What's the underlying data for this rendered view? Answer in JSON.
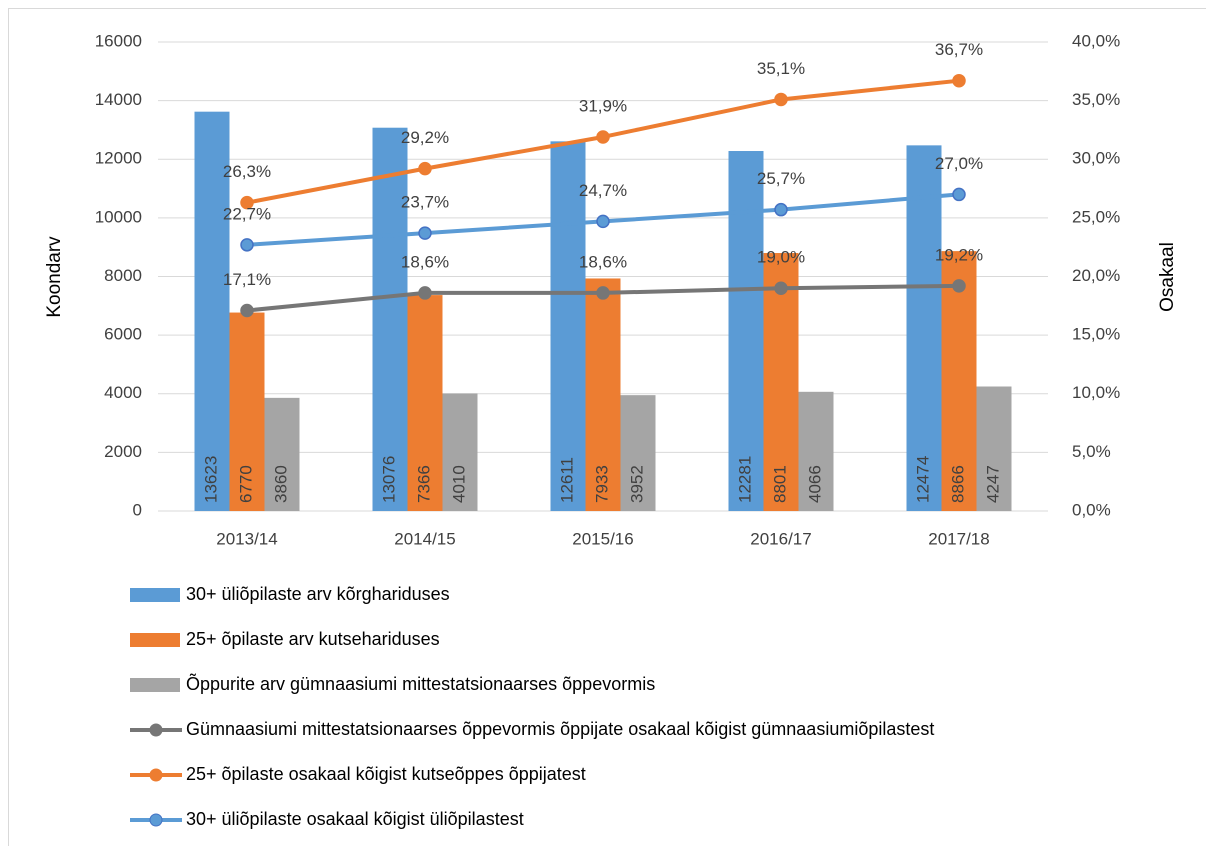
{
  "chart_data": {
    "type": "combo",
    "categories": [
      "2013/14",
      "2014/15",
      "2015/16",
      "2016/17",
      "2017/18"
    ],
    "ylabel": "Koondarv",
    "y2label": "Osakaal",
    "ylim": [
      0,
      16000
    ],
    "yticks": [
      0,
      2000,
      4000,
      6000,
      8000,
      10000,
      12000,
      14000,
      16000
    ],
    "y2lim": [
      0,
      40
    ],
    "y2ticks": [
      {
        "value": 0,
        "label": "0,0%"
      },
      {
        "value": 5,
        "label": "5,0%"
      },
      {
        "value": 10,
        "label": "10,0%"
      },
      {
        "value": 15,
        "label": "15,0%"
      },
      {
        "value": 20,
        "label": "20,0%"
      },
      {
        "value": 25,
        "label": "25,0%"
      },
      {
        "value": 30,
        "label": "30,0%"
      },
      {
        "value": 35,
        "label": "35,0%"
      },
      {
        "value": 40,
        "label": "40,0%"
      }
    ],
    "grid": true,
    "legend": "bottom",
    "series": [
      {
        "name": "30+ üliõpilaste arv kõrghariduses",
        "type": "bar",
        "color": "#5b9bd5",
        "values": [
          13623,
          13076,
          12611,
          12281,
          12474
        ]
      },
      {
        "name": "25+ õpilaste arv kutsehariduses",
        "type": "bar",
        "color": "#ed7d31",
        "values": [
          6770,
          7366,
          7933,
          8801,
          8866
        ]
      },
      {
        "name": "Õppurite arv gümnaasiumi mittestatsionaarses õppevormis",
        "type": "bar",
        "color": "#a5a5a5",
        "values": [
          3860,
          4010,
          3952,
          4066,
          4247
        ]
      },
      {
        "name": "Gümnaasiumi mittestatsionaarses õppevormis õppijate osakaal kõigist gümnaasiumiõpilastest",
        "type": "line",
        "axis": "y2",
        "color": "#767676",
        "values": [
          17.1,
          18.6,
          18.6,
          19.0,
          19.2
        ],
        "value_labels": [
          "17,1%",
          "18,6%",
          "18,6%",
          "19,0%",
          "19,2%"
        ]
      },
      {
        "name": "25+ õpilaste osakaal kõigist kutseõppes õppijatest",
        "type": "line",
        "axis": "y2",
        "color": "#ed7d31",
        "values": [
          26.3,
          29.2,
          31.9,
          35.1,
          36.7
        ],
        "value_labels": [
          "26,3%",
          "29,2%",
          "31,9%",
          "35,1%",
          "36,7%"
        ]
      },
      {
        "name": "30+ üliõpilaste osakaal kõigist üliõpilastest",
        "type": "line",
        "axis": "y2",
        "color": "#5b9bd5",
        "values": [
          22.7,
          23.7,
          24.7,
          25.7,
          27.0
        ],
        "value_labels": [
          "22,7%",
          "23,7%",
          "24,7%",
          "25,7%",
          "27,0%"
        ]
      }
    ]
  }
}
